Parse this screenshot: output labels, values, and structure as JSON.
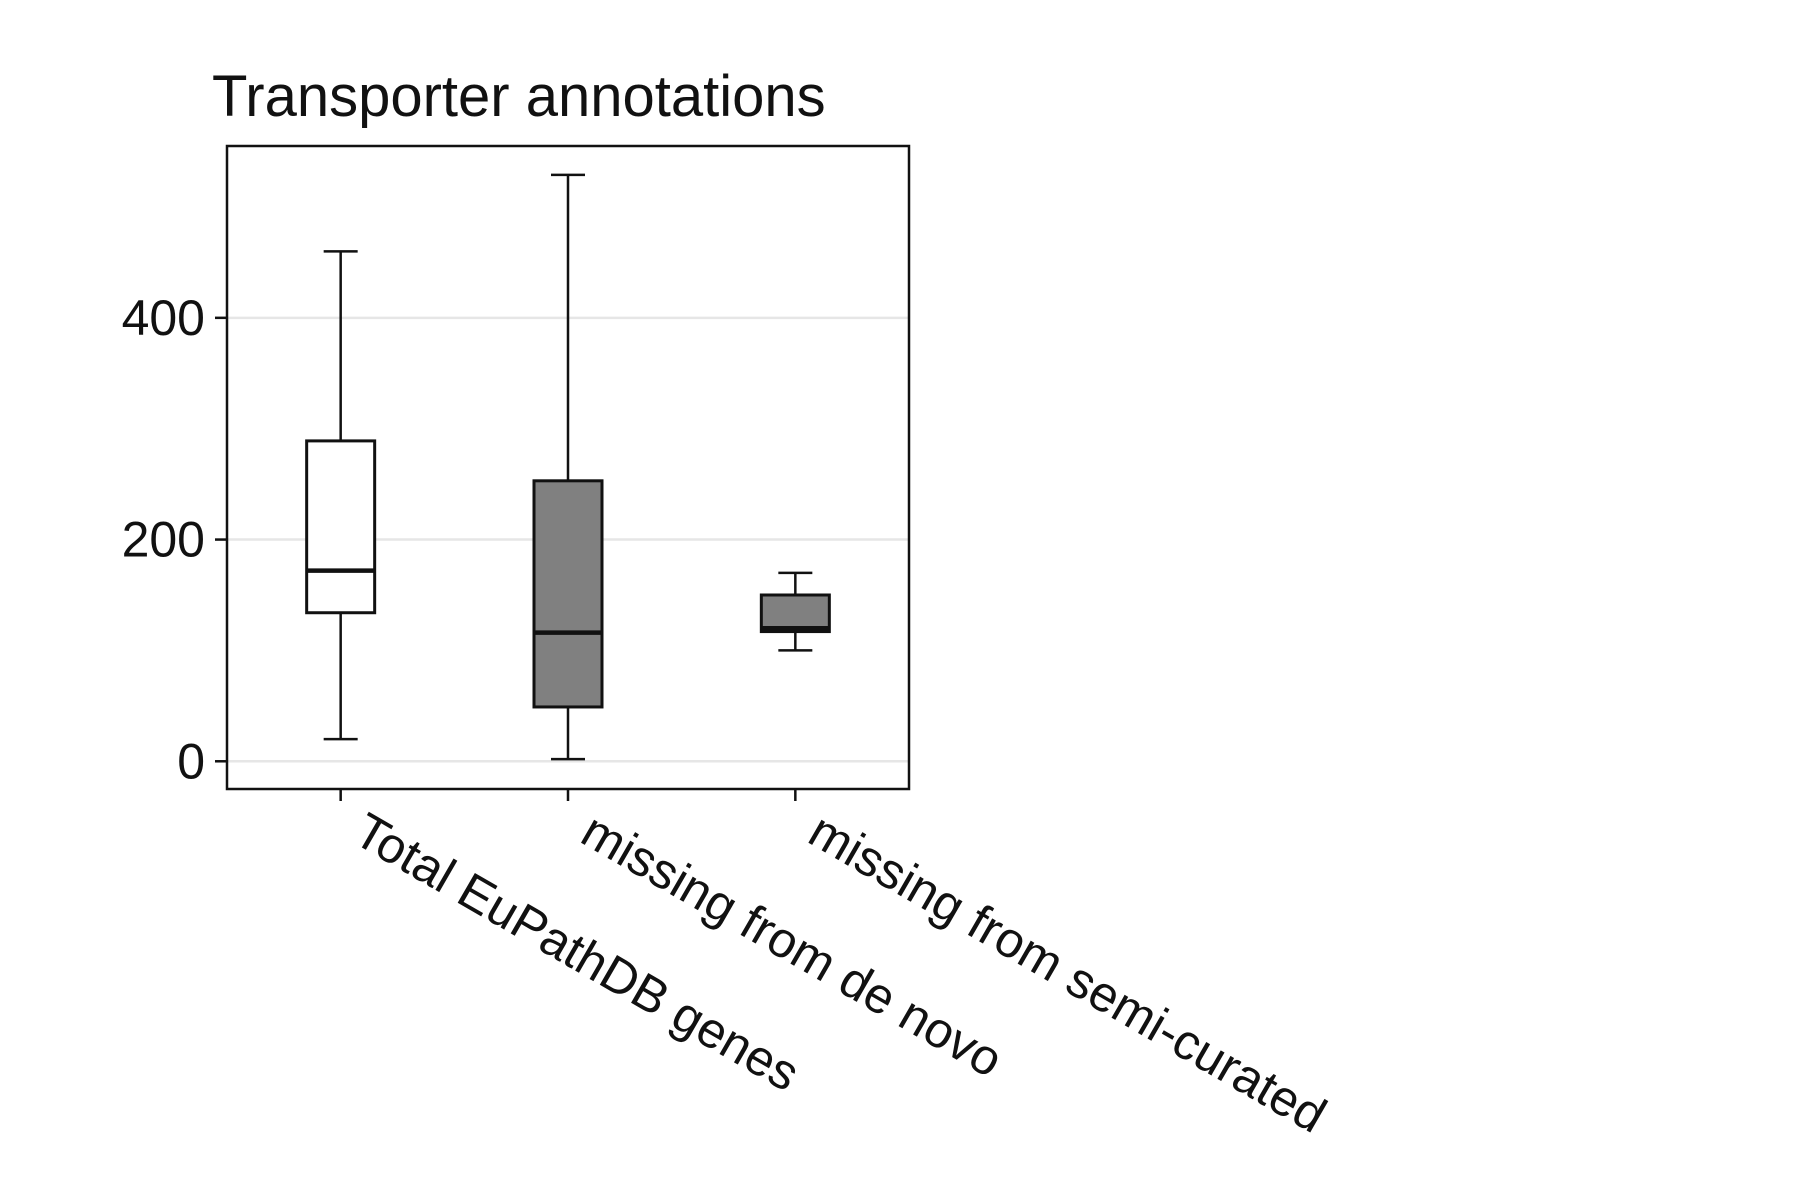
{
  "chart_data": {
    "type": "box",
    "title": "Transporter annotations",
    "xlabel": "",
    "ylabel": "",
    "ylim": [
      -25,
      555
    ],
    "yticks": [
      0,
      200,
      400
    ],
    "grid": "horizontal",
    "categories": [
      "Total EuPathDB genes",
      "missing from de novo",
      "missing from semi-curated"
    ],
    "boxes": [
      {
        "category": "Total EuPathDB genes",
        "whisker_low": 20,
        "q1": 134,
        "median": 172,
        "q3": 289,
        "whisker_high": 460,
        "fill": "#ffffff"
      },
      {
        "category": "missing from de novo",
        "whisker_low": 2,
        "q1": 49,
        "median": 116,
        "q3": 253,
        "whisker_high": 529,
        "fill": "#808080"
      },
      {
        "category": "missing from semi-curated",
        "whisker_low": 100,
        "q1": 117,
        "median": 120,
        "q3": 150,
        "whisker_high": 170,
        "fill": "#808080"
      }
    ],
    "colors": {
      "axis": "#111111",
      "grid": "#e6e6e6",
      "box_edge": "#111111"
    }
  }
}
